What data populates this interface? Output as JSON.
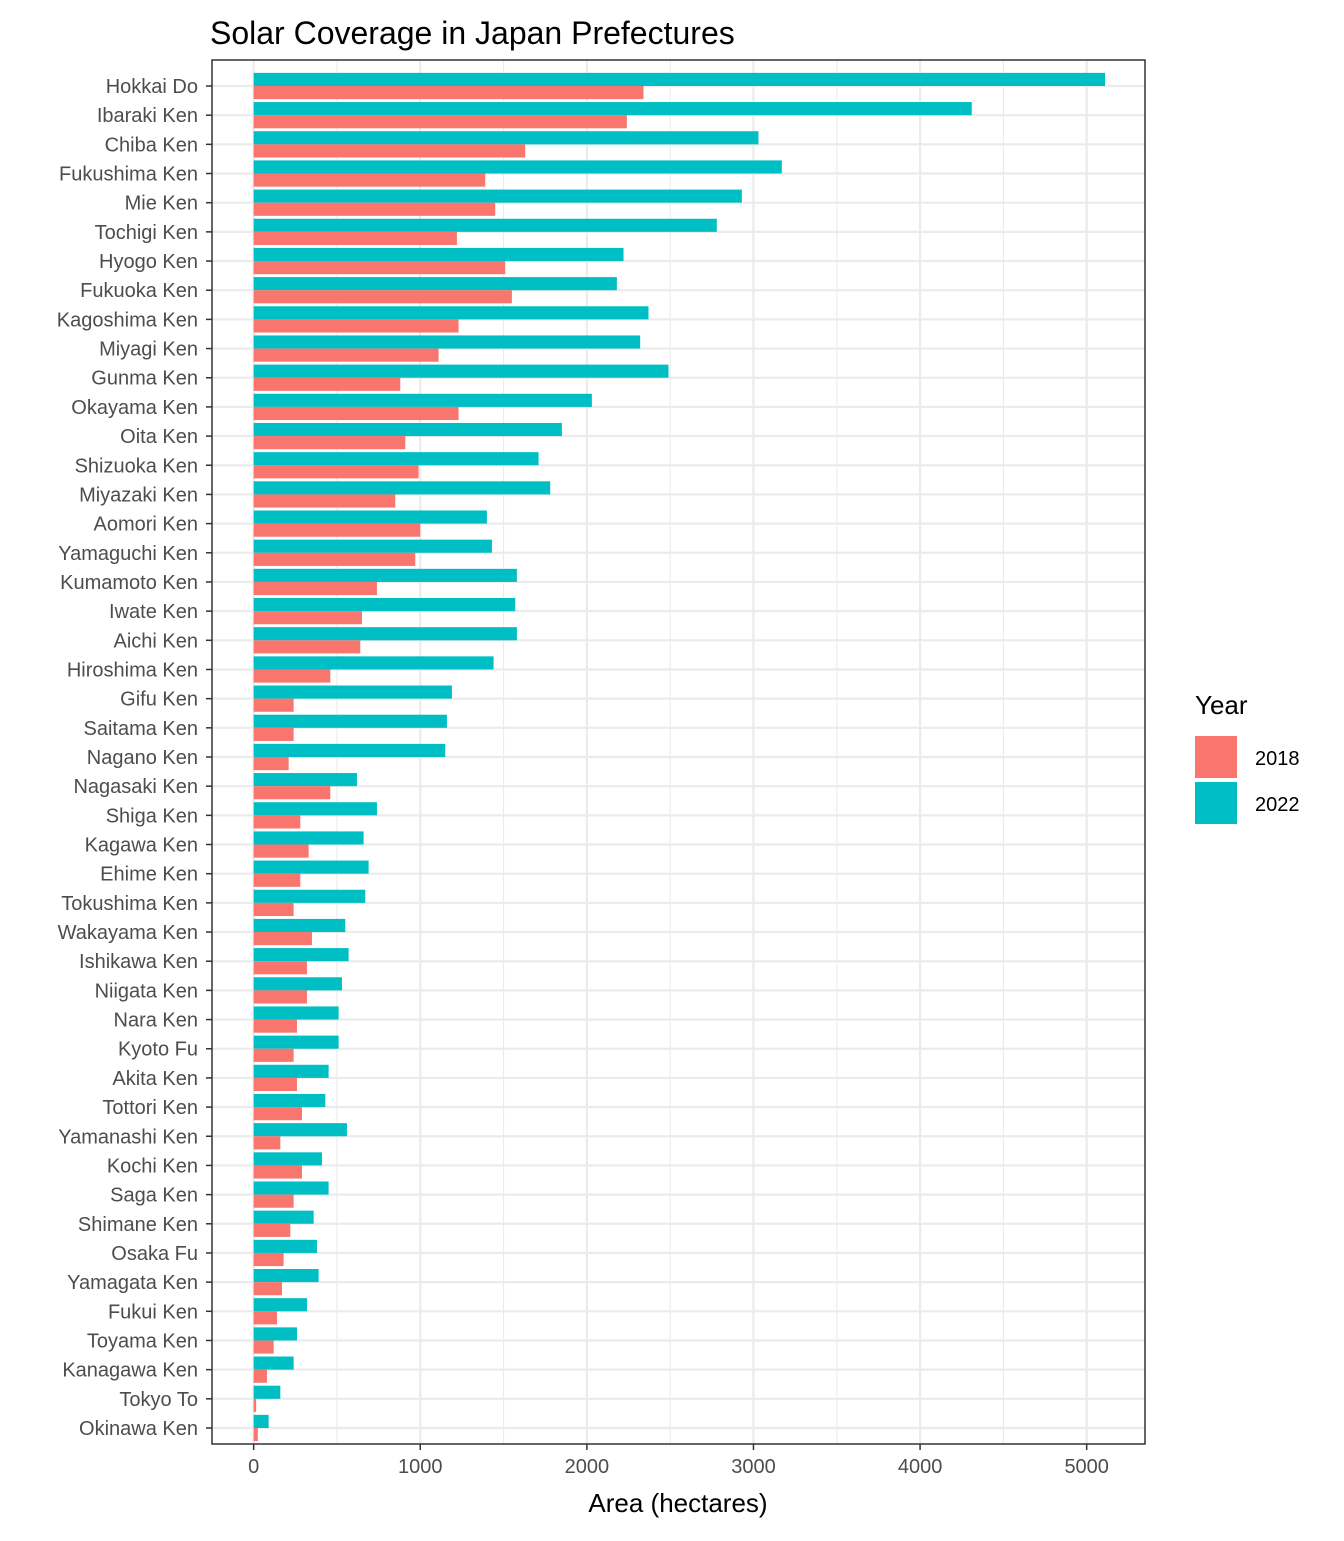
{
  "chart_data": {
    "type": "bar",
    "orientation": "horizontal",
    "title": "Solar Coverage in Japan Prefectures",
    "xlabel": "Area (hectares)",
    "ylabel": "",
    "xlim": [
      -250,
      5350
    ],
    "xticks": [
      0,
      1000,
      2000,
      3000,
      4000,
      5000
    ],
    "grid": true,
    "legend": {
      "title": "Year",
      "position": "right"
    },
    "categories": [
      "Hokkai Do",
      "Ibaraki Ken",
      "Chiba Ken",
      "Fukushima Ken",
      "Mie Ken",
      "Tochigi Ken",
      "Hyogo Ken",
      "Fukuoka Ken",
      "Kagoshima Ken",
      "Miyagi Ken",
      "Gunma Ken",
      "Okayama Ken",
      "Oita Ken",
      "Shizuoka Ken",
      "Miyazaki Ken",
      "Aomori Ken",
      "Yamaguchi Ken",
      "Kumamoto Ken",
      "Iwate Ken",
      "Aichi Ken",
      "Hiroshima Ken",
      "Gifu Ken",
      "Saitama Ken",
      "Nagano Ken",
      "Nagasaki Ken",
      "Shiga Ken",
      "Kagawa Ken",
      "Ehime Ken",
      "Tokushima Ken",
      "Wakayama Ken",
      "Ishikawa Ken",
      "Niigata Ken",
      "Nara Ken",
      "Kyoto Fu",
      "Akita Ken",
      "Tottori Ken",
      "Yamanashi Ken",
      "Kochi Ken",
      "Saga Ken",
      "Shimane Ken",
      "Osaka Fu",
      "Yamagata Ken",
      "Fukui Ken",
      "Toyama Ken",
      "Kanagawa Ken",
      "Tokyo To",
      "Okinawa Ken"
    ],
    "series": [
      {
        "name": "2018",
        "color": "#F8766D",
        "values": [
          2340,
          2240,
          1630,
          1390,
          1450,
          1220,
          1510,
          1550,
          1230,
          1110,
          880,
          1230,
          910,
          990,
          850,
          1000,
          970,
          740,
          650,
          640,
          460,
          240,
          240,
          210,
          460,
          280,
          330,
          280,
          240,
          350,
          320,
          320,
          260,
          240,
          260,
          290,
          160,
          290,
          240,
          220,
          180,
          170,
          140,
          120,
          80,
          15,
          25
        ]
      },
      {
        "name": "2022",
        "color": "#00BFC4",
        "values": [
          5110,
          4310,
          3030,
          3170,
          2930,
          2780,
          2220,
          2180,
          2370,
          2320,
          2490,
          2030,
          1850,
          1710,
          1780,
          1400,
          1430,
          1580,
          1570,
          1580,
          1440,
          1190,
          1160,
          1150,
          620,
          740,
          660,
          690,
          670,
          550,
          570,
          530,
          510,
          510,
          450,
          430,
          560,
          410,
          450,
          360,
          380,
          390,
          320,
          260,
          240,
          160,
          90
        ]
      }
    ]
  }
}
